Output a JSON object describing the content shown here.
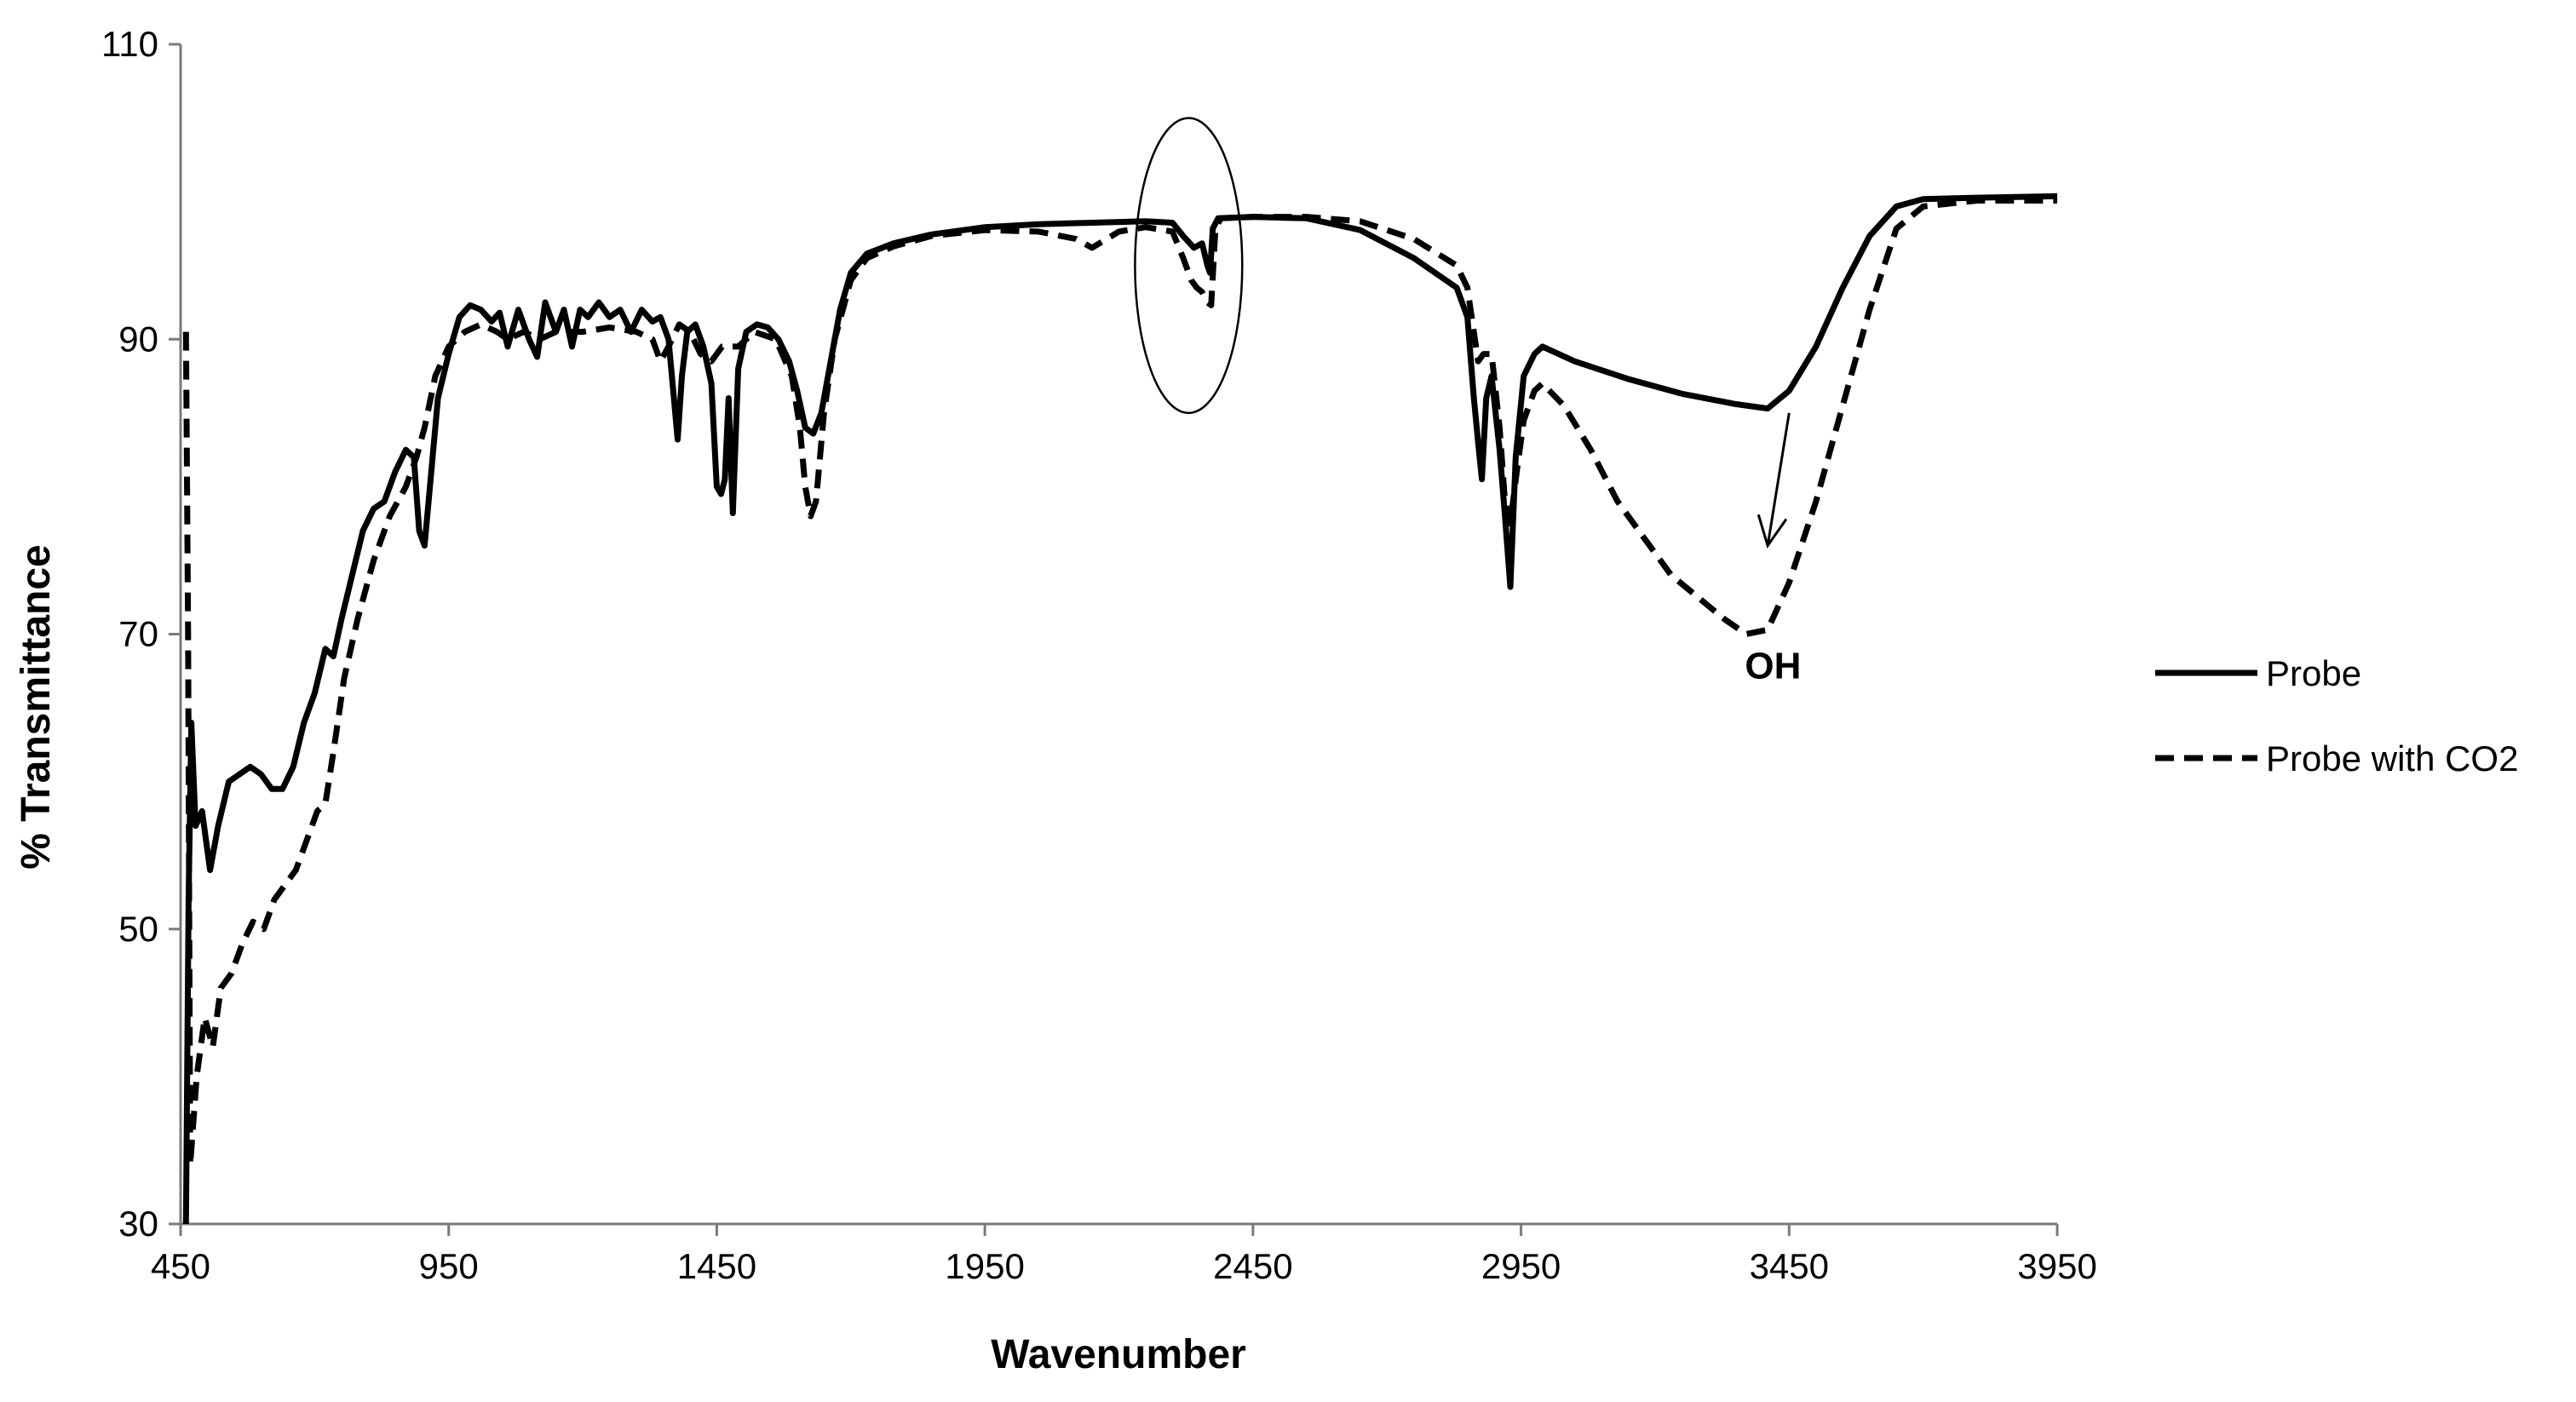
{
  "chart_data": {
    "type": "line",
    "title": "",
    "xlabel": "Wavenumber",
    "ylabel": "% Transmittance",
    "xlim": [
      450,
      3950
    ],
    "ylim": [
      30,
      110
    ],
    "xticks": [
      450,
      950,
      1450,
      1950,
      2450,
      2950,
      3450,
      3950
    ],
    "yticks": [
      30,
      50,
      70,
      90,
      110
    ],
    "grid": false,
    "legend_position": "right",
    "series": [
      {
        "name": "Probe",
        "style": "solid",
        "color": "#000000",
        "points": [
          [
            460,
            30
          ],
          [
            465,
            52
          ],
          [
            470,
            64
          ],
          [
            478,
            57
          ],
          [
            490,
            58
          ],
          [
            505,
            54
          ],
          [
            520,
            57
          ],
          [
            540,
            60
          ],
          [
            560,
            60.5
          ],
          [
            580,
            61
          ],
          [
            600,
            60.5
          ],
          [
            620,
            59.5
          ],
          [
            640,
            59.5
          ],
          [
            660,
            61
          ],
          [
            680,
            64
          ],
          [
            700,
            66
          ],
          [
            720,
            69
          ],
          [
            735,
            68.5
          ],
          [
            750,
            71
          ],
          [
            770,
            74
          ],
          [
            790,
            77
          ],
          [
            810,
            78.5
          ],
          [
            830,
            79
          ],
          [
            850,
            81
          ],
          [
            870,
            82.5
          ],
          [
            885,
            82
          ],
          [
            895,
            77
          ],
          [
            905,
            76
          ],
          [
            915,
            80
          ],
          [
            930,
            86
          ],
          [
            950,
            89
          ],
          [
            970,
            91.5
          ],
          [
            990,
            92.3
          ],
          [
            1010,
            92
          ],
          [
            1030,
            91.2
          ],
          [
            1045,
            91.8
          ],
          [
            1060,
            89.5
          ],
          [
            1080,
            92
          ],
          [
            1100,
            90
          ],
          [
            1115,
            88.8
          ],
          [
            1130,
            92.5
          ],
          [
            1150,
            90.5
          ],
          [
            1165,
            92
          ],
          [
            1180,
            89.5
          ],
          [
            1195,
            92
          ],
          [
            1210,
            91.5
          ],
          [
            1230,
            92.5
          ],
          [
            1250,
            91.5
          ],
          [
            1270,
            92
          ],
          [
            1290,
            90.5
          ],
          [
            1310,
            92
          ],
          [
            1330,
            91.2
          ],
          [
            1345,
            91.5
          ],
          [
            1360,
            90
          ],
          [
            1370,
            86
          ],
          [
            1377,
            83.2
          ],
          [
            1385,
            87.5
          ],
          [
            1395,
            90.5
          ],
          [
            1410,
            91
          ],
          [
            1425,
            89.5
          ],
          [
            1440,
            87
          ],
          [
            1450,
            80
          ],
          [
            1458,
            79.5
          ],
          [
            1465,
            80.5
          ],
          [
            1472,
            86
          ],
          [
            1480,
            78.2
          ],
          [
            1490,
            88
          ],
          [
            1505,
            90.5
          ],
          [
            1525,
            91
          ],
          [
            1545,
            90.8
          ],
          [
            1565,
            90
          ],
          [
            1585,
            88.5
          ],
          [
            1600,
            86.5
          ],
          [
            1615,
            84
          ],
          [
            1630,
            83.6
          ],
          [
            1645,
            85
          ],
          [
            1660,
            88
          ],
          [
            1680,
            92
          ],
          [
            1700,
            94.5
          ],
          [
            1730,
            95.8
          ],
          [
            1780,
            96.5
          ],
          [
            1850,
            97.1
          ],
          [
            1950,
            97.6
          ],
          [
            2050,
            97.8
          ],
          [
            2150,
            97.9
          ],
          [
            2250,
            98
          ],
          [
            2300,
            97.9
          ],
          [
            2320,
            97
          ],
          [
            2340,
            96.2
          ],
          [
            2355,
            96.5
          ],
          [
            2365,
            95
          ],
          [
            2370,
            94.5
          ],
          [
            2375,
            97.5
          ],
          [
            2385,
            98.2
          ],
          [
            2450,
            98.3
          ],
          [
            2550,
            98.2
          ],
          [
            2650,
            97.4
          ],
          [
            2750,
            95.5
          ],
          [
            2830,
            93.5
          ],
          [
            2850,
            91.5
          ],
          [
            2862,
            86
          ],
          [
            2870,
            83
          ],
          [
            2877,
            80.5
          ],
          [
            2885,
            86
          ],
          [
            2895,
            87.5
          ],
          [
            2910,
            82.5
          ],
          [
            2920,
            78
          ],
          [
            2930,
            73.2
          ],
          [
            2940,
            82
          ],
          [
            2955,
            87.5
          ],
          [
            2975,
            89
          ],
          [
            2990,
            89.5
          ],
          [
            3050,
            88.5
          ],
          [
            3150,
            87.3
          ],
          [
            3250,
            86.3
          ],
          [
            3350,
            85.6
          ],
          [
            3410,
            85.3
          ],
          [
            3450,
            86.5
          ],
          [
            3500,
            89.5
          ],
          [
            3550,
            93.5
          ],
          [
            3600,
            97
          ],
          [
            3650,
            99
          ],
          [
            3700,
            99.5
          ],
          [
            3800,
            99.6
          ],
          [
            3950,
            99.7
          ]
        ]
      },
      {
        "name": "Probe with CO2",
        "style": "dashed",
        "color": "#000000",
        "points": [
          [
            460,
            90.5
          ],
          [
            464,
            70
          ],
          [
            468,
            34
          ],
          [
            480,
            40
          ],
          [
            495,
            44
          ],
          [
            510,
            42
          ],
          [
            525,
            46
          ],
          [
            545,
            47
          ],
          [
            565,
            49
          ],
          [
            585,
            50.5
          ],
          [
            605,
            50
          ],
          [
            625,
            52
          ],
          [
            645,
            53
          ],
          [
            665,
            54
          ],
          [
            685,
            56
          ],
          [
            705,
            58
          ],
          [
            720,
            58.5
          ],
          [
            735,
            62
          ],
          [
            755,
            67
          ],
          [
            780,
            71
          ],
          [
            810,
            75
          ],
          [
            840,
            78
          ],
          [
            870,
            80
          ],
          [
            890,
            82
          ],
          [
            905,
            84
          ],
          [
            925,
            87.5
          ],
          [
            950,
            89.5
          ],
          [
            980,
            90.5
          ],
          [
            1010,
            91
          ],
          [
            1040,
            90.5
          ],
          [
            1060,
            90
          ],
          [
            1090,
            90.5
          ],
          [
            1120,
            90
          ],
          [
            1150,
            90.5
          ],
          [
            1200,
            90.5
          ],
          [
            1250,
            90.8
          ],
          [
            1300,
            90.5
          ],
          [
            1330,
            90
          ],
          [
            1345,
            88.5
          ],
          [
            1360,
            89.5
          ],
          [
            1380,
            91
          ],
          [
            1400,
            90.5
          ],
          [
            1420,
            89
          ],
          [
            1440,
            88.5
          ],
          [
            1460,
            89.5
          ],
          [
            1490,
            89.5
          ],
          [
            1520,
            90.5
          ],
          [
            1560,
            90
          ],
          [
            1590,
            87.5
          ],
          [
            1605,
            84
          ],
          [
            1615,
            80
          ],
          [
            1625,
            78
          ],
          [
            1635,
            79
          ],
          [
            1650,
            85
          ],
          [
            1670,
            90
          ],
          [
            1700,
            94
          ],
          [
            1730,
            95.5
          ],
          [
            1780,
            96.3
          ],
          [
            1850,
            97
          ],
          [
            1950,
            97.4
          ],
          [
            2050,
            97.3
          ],
          [
            2120,
            96.8
          ],
          [
            2150,
            96.2
          ],
          [
            2200,
            97.3
          ],
          [
            2250,
            97.6
          ],
          [
            2300,
            97.3
          ],
          [
            2320,
            95.5
          ],
          [
            2335,
            94
          ],
          [
            2345,
            93.5
          ],
          [
            2355,
            93.2
          ],
          [
            2365,
            92.5
          ],
          [
            2372,
            92.3
          ],
          [
            2380,
            97.5
          ],
          [
            2390,
            98.2
          ],
          [
            2450,
            98.3
          ],
          [
            2550,
            98.3
          ],
          [
            2650,
            98
          ],
          [
            2750,
            96.8
          ],
          [
            2830,
            95
          ],
          [
            2850,
            93.5
          ],
          [
            2860,
            91
          ],
          [
            2870,
            88.5
          ],
          [
            2880,
            89
          ],
          [
            2895,
            89
          ],
          [
            2910,
            84
          ],
          [
            2920,
            79
          ],
          [
            2930,
            77.5
          ],
          [
            2942,
            81
          ],
          [
            2955,
            84.5
          ],
          [
            2975,
            86.5
          ],
          [
            2990,
            87
          ],
          [
            3030,
            85.5
          ],
          [
            3080,
            82.5
          ],
          [
            3130,
            79
          ],
          [
            3180,
            76.5
          ],
          [
            3230,
            74
          ],
          [
            3280,
            72.5
          ],
          [
            3330,
            71
          ],
          [
            3370,
            70
          ],
          [
            3410,
            70.3
          ],
          [
            3450,
            73.5
          ],
          [
            3500,
            79
          ],
          [
            3550,
            85.5
          ],
          [
            3600,
            92
          ],
          [
            3650,
            97.5
          ],
          [
            3700,
            99
          ],
          [
            3800,
            99.4
          ],
          [
            3950,
            99.4
          ]
        ]
      }
    ],
    "annotations": [
      {
        "text": "OH",
        "x": 3420,
        "y": 67
      },
      {
        "type": "arrow",
        "from": [
          3450,
          85
        ],
        "to": [
          3410,
          76
        ]
      },
      {
        "type": "ellipse",
        "cx": 2330,
        "cy": 95,
        "rx": 100,
        "ry": 10
      }
    ]
  }
}
